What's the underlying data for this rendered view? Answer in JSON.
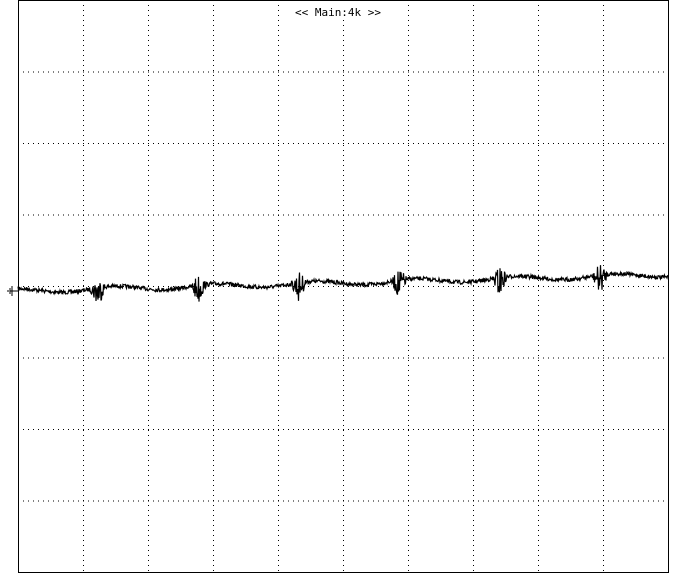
{
  "screen": {
    "header": "<< Main:4k >>"
  }
}
